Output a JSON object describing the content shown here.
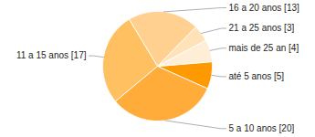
{
  "chart_data": {
    "type": "pie",
    "categories": [
      "até 5 anos [5]",
      "5 a 10 anos [20]",
      "11 a 15 anos [17]",
      "16 a 20 anos [13]",
      "21 a 25 anos [3]",
      "mais de 25 an [4]"
    ],
    "values": [
      5,
      20,
      17,
      13,
      3,
      4
    ],
    "colors": [
      "#ff9900",
      "#ffac3a",
      "#ffc062",
      "#ffd08f",
      "#ffe2b8",
      "#ffeed6"
    ]
  }
}
